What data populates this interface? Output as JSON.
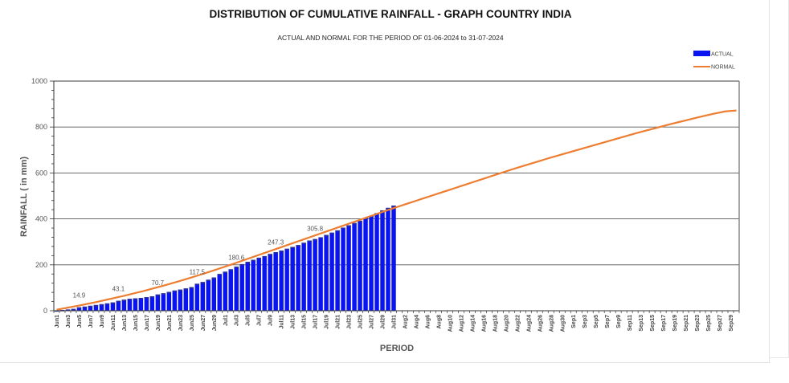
{
  "chart_data": {
    "type": "bar",
    "title": "DISTRIBUTION OF CUMULATIVE RAINFALL - GRAPH COUNTRY INDIA",
    "subtitle": "ACTUAL AND NORMAL FOR THE PERIOD OF 01-06-2024  to 31-07-2024",
    "xlabel": "PERIOD",
    "ylabel": "RAINFALL ( in mm)",
    "ylim": [
      0,
      1000
    ],
    "yticks": [
      0,
      200,
      400,
      600,
      800,
      1000
    ],
    "grid": true,
    "legend_position": "top-right",
    "legend": [
      {
        "name": "ACTUAL",
        "type": "bar",
        "color": "#0a14f0"
      },
      {
        "name": "NORMAL",
        "type": "line",
        "color": "#ed7d31"
      }
    ],
    "x_start": "Jun1",
    "x_end": "Sep30",
    "x_tick_labels": [
      "Jun1",
      "Jun3",
      "Jun5",
      "Jun7",
      "Jun9",
      "Jun11",
      "Jun13",
      "Jun15",
      "Jun17",
      "Jun19",
      "Jun21",
      "Jun23",
      "Jun25",
      "Jun27",
      "Jun29",
      "Jul1",
      "Jul3",
      "Jul5",
      "Jul7",
      "Jul9",
      "Jul11",
      "Jul13",
      "Jul15",
      "Jul17",
      "Jul19",
      "Jul21",
      "Jul23",
      "Jul25",
      "Jul27",
      "Jul29",
      "Jul31",
      "Aug2",
      "Aug4",
      "Aug6",
      "Aug8",
      "Aug10",
      "Aug12",
      "Aug14",
      "Aug16",
      "Aug18",
      "Aug20",
      "Aug22",
      "Aug24",
      "Aug26",
      "Aug28",
      "Aug30",
      "Sep1",
      "Sep3",
      "Sep5",
      "Sep7",
      "Sep9",
      "Sep11",
      "Sep13",
      "Sep15",
      "Sep17",
      "Sep19",
      "Sep21",
      "Sep23",
      "Sep25",
      "Sep27",
      "Sep29"
    ],
    "series": [
      {
        "name": "ACTUAL",
        "type": "bar",
        "values": [
          1.5,
          3.2,
          5.5,
          8.0,
          14.9,
          18.0,
          21.5,
          25.0,
          28.5,
          32.0,
          36.0,
          43.1,
          48.0,
          52.0,
          54.0,
          56.0,
          59.0,
          63.0,
          70.7,
          76.0,
          82.0,
          88.0,
          92.0,
          97.0,
          103.0,
          117.5,
          125.0,
          135.0,
          145.0,
          160.0,
          170.0,
          180.6,
          192.0,
          203.0,
          213.0,
          222.0,
          231.0,
          238.0,
          247.3,
          255.0,
          262.0,
          270.0,
          278.0,
          286.0,
          296.0,
          305.8,
          312.0,
          320.0,
          330.0,
          340.0,
          350.0,
          362.0,
          372.0,
          382.0,
          392.0,
          404.0,
          414.0,
          425.0,
          437.0,
          448.0,
          458.0
        ]
      },
      {
        "name": "NORMAL",
        "type": "line",
        "values": [
          4.5,
          9.0,
          13.5,
          18.0,
          22.5,
          27.5,
          32.5,
          37.5,
          43.0,
          48.5,
          54.0,
          59.5,
          65.0,
          71.0,
          77.0,
          83.0,
          89.5,
          96.0,
          102.5,
          109.0,
          116.0,
          123.0,
          130.0,
          137.5,
          145.0,
          152.5,
          160.0,
          168.0,
          176.0,
          184.0,
          192.0,
          200.5,
          209.0,
          217.5,
          226.0,
          234.5,
          243.0,
          251.5,
          260.0,
          268.5,
          277.0,
          285.5,
          294.0,
          302.5,
          311.0,
          319.5,
          328.0,
          336.5,
          345.0,
          353.5,
          362.0,
          370.5,
          379.0,
          387.5,
          396.0,
          404.5,
          413.0,
          421.5,
          430.0,
          438.5,
          447.0,
          455.0,
          463.0,
          471.0,
          479.0,
          487.0,
          495.0,
          503.0,
          511.0,
          519.0,
          527.0,
          535.0,
          543.0,
          551.0,
          559.0,
          567.0,
          575.0,
          583.0,
          591.0,
          599.0,
          607.0,
          615.0,
          622.5,
          630.0,
          637.5,
          645.0,
          652.5,
          660.0,
          667.0,
          674.0,
          681.0,
          688.0,
          695.0,
          702.0,
          709.0,
          716.0,
          723.0,
          730.0,
          737.0,
          744.0,
          751.0,
          758.0,
          765.0,
          772.0,
          778.5,
          785.0,
          791.5,
          798.0,
          804.5,
          811.0,
          817.0,
          823.0,
          829.0,
          835.0,
          841.0,
          847.0,
          852.5,
          858.0,
          863.0,
          868.0,
          870.0,
          872.0
        ]
      }
    ],
    "data_labels": [
      {
        "x": "Jun5",
        "value": "14.9"
      },
      {
        "x": "Jun12",
        "value": "43.1"
      },
      {
        "x": "Jun19",
        "value": "70.7"
      },
      {
        "x": "Jun26",
        "value": "117.5"
      },
      {
        "x": "Jul3",
        "value": "180.6"
      },
      {
        "x": "Jul10",
        "value": "247.3"
      },
      {
        "x": "Jul17",
        "value": "305.8"
      }
    ]
  }
}
